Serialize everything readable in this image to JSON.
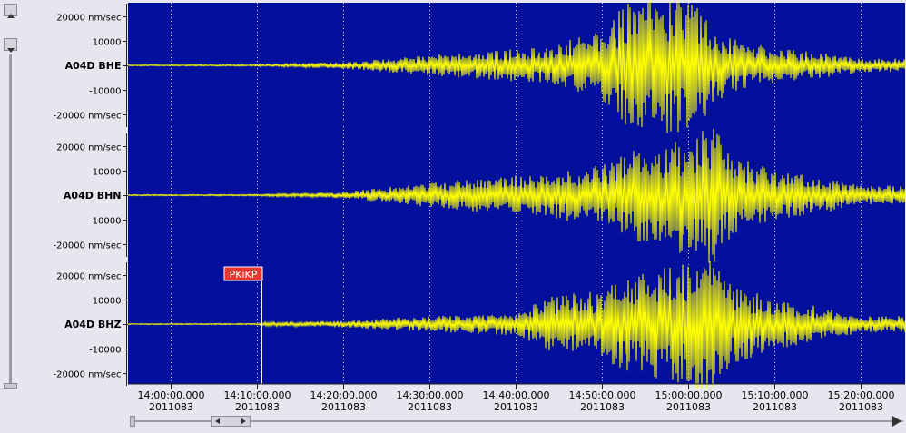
{
  "colors": {
    "plot_bg": "#02109c",
    "trace": "#ffff00",
    "grid": "#d8d8f0",
    "chrome": "#e6e6ee",
    "pick_bg": "#e8392f"
  },
  "vertical_scrollbar": {
    "up_icon": "arrow-up-icon",
    "down_icon": "arrow-down-icon"
  },
  "time_axis": {
    "ticks": [
      {
        "time": "14:00:00.000",
        "date": "2011083"
      },
      {
        "time": "14:10:00.000",
        "date": "2011083"
      },
      {
        "time": "14:20:00.000",
        "date": "2011083"
      },
      {
        "time": "14:30:00.000",
        "date": "2011083"
      },
      {
        "time": "14:40:00.000",
        "date": "2011083"
      },
      {
        "time": "14:50:00.000",
        "date": "2011083"
      },
      {
        "time": "15:00:00.000",
        "date": "2011083"
      },
      {
        "time": "15:10:00.000",
        "date": "2011083"
      },
      {
        "time": "15:20:00.000",
        "date": "2011083"
      }
    ]
  },
  "channels": [
    {
      "label": "A04D BHE",
      "y_ticks": [
        "20000 nm/sec",
        "10000",
        "-10000",
        "-20000 nm/sec"
      ]
    },
    {
      "label": "A04D BHN",
      "y_ticks": [
        "20000 nm/sec",
        "10000",
        "-10000",
        "-20000 nm/sec"
      ]
    },
    {
      "label": "A04D BHZ",
      "y_ticks": [
        "20000 nm/sec",
        "10000",
        "-10000",
        "-20000 nm/sec"
      ]
    }
  ],
  "pick": {
    "label": "PKiKP",
    "channel": "A04D BHZ",
    "time": "14:10:30"
  },
  "chart_data": {
    "type": "line",
    "title": "",
    "xlabel": "",
    "ylabel": "",
    "x_range": [
      "13:55",
      "15:24"
    ],
    "ylim": [
      -25000,
      25000
    ],
    "grid": true,
    "series": [
      {
        "name": "A04D BHE",
        "envelope_times": [
          "14:00",
          "14:10",
          "14:20",
          "14:30",
          "14:40",
          "14:45",
          "14:50",
          "14:53",
          "14:58",
          "15:00",
          "15:05",
          "15:10",
          "15:15",
          "15:20"
        ],
        "envelope_amplitude": [
          250,
          350,
          1200,
          3800,
          6000,
          7600,
          14500,
          23000,
          26000,
          25000,
          10000,
          6500,
          5000,
          2500
        ]
      },
      {
        "name": "A04D BHN",
        "envelope_times": [
          "14:00",
          "14:10",
          "14:20",
          "14:30",
          "14:40",
          "14:45",
          "14:50",
          "14:53",
          "14:58",
          "15:00",
          "15:03",
          "15:05",
          "15:10",
          "15:15",
          "15:20"
        ],
        "envelope_amplitude": [
          250,
          350,
          1200,
          4600,
          7400,
          9200,
          11500,
          16500,
          20500,
          22000,
          26000,
          15000,
          9000,
          7400,
          3500
        ]
      },
      {
        "name": "A04D BHZ",
        "envelope_times": [
          "14:00",
          "14:10",
          "14:10:30",
          "14:20",
          "14:30",
          "14:40",
          "14:45",
          "14:50",
          "14:53",
          "14:58",
          "15:00",
          "15:03",
          "15:05",
          "15:10",
          "15:15",
          "15:20"
        ],
        "envelope_amplitude": [
          200,
          250,
          800,
          1200,
          3000,
          4100,
          11500,
          12600,
          18000,
          22000,
          23000,
          26000,
          15000,
          9200,
          6900,
          3100
        ]
      }
    ]
  }
}
